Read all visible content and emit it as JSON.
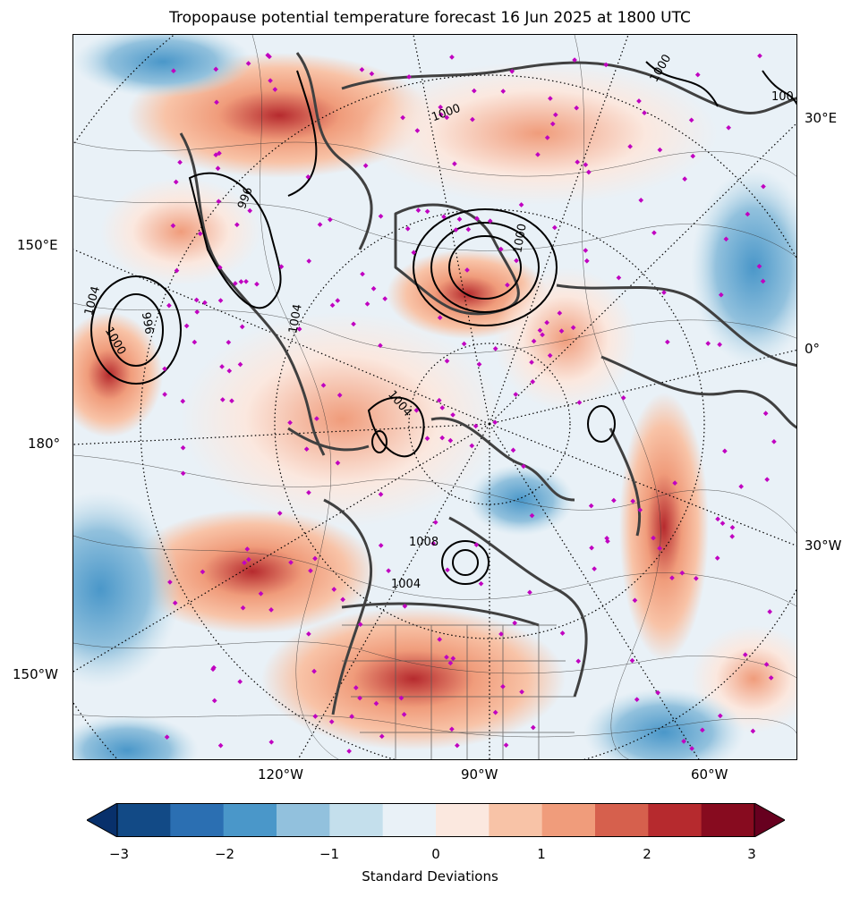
{
  "title": "Tropopause potential temperature forecast 16 Jun 2025 at 1800 UTC",
  "map": {
    "lon_labels_left": [
      "150°E",
      "180°",
      "150°W"
    ],
    "lon_labels_right": [
      "30°E",
      "0°",
      "30°W"
    ],
    "lon_labels_bottom": [
      "120°W",
      "90°W",
      "60°W"
    ],
    "isobar_labels": [
      "1000",
      "996",
      "1004",
      "1004",
      "1000",
      "996",
      "1004",
      "1008",
      "1004",
      "1000",
      "1000",
      "100"
    ],
    "station_marker_color": "#c000c0",
    "coastline_color": "#404040"
  },
  "colorbar": {
    "label": "Standard Deviations",
    "ticks": [
      "−3",
      "−2",
      "−1",
      "0",
      "1",
      "2",
      "3"
    ],
    "colors": [
      "#08306b",
      "#124a86",
      "#2b6fb2",
      "#4a97c9",
      "#92c1dd",
      "#c4dfec",
      "#e9f1f7",
      "#fbe8df",
      "#f8c3a7",
      "#f09c7b",
      "#d6604d",
      "#b62a2e",
      "#870b1f",
      "#67001f"
    ]
  }
}
